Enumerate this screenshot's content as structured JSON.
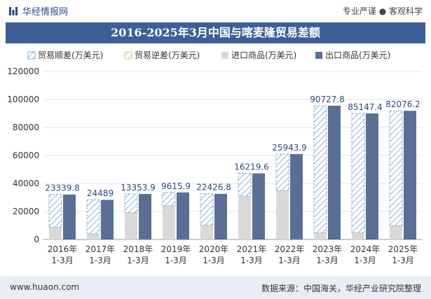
{
  "header": {
    "brand": "华经情报网",
    "tagline": "专业严谨 ● 客观科学",
    "logo_icon": "bar-logo-icon"
  },
  "footer": {
    "website": "www.huaon.com",
    "source": "数据来源：中国海关，华经产业研究院整理"
  },
  "colors": {
    "title_bg": "#3d5f97",
    "export": "#5b6f96",
    "import": "#d9d9d9",
    "surplus_stroke": "#7fa8c9",
    "deficit_stroke": "#d9c98a"
  },
  "chart_data": {
    "type": "bar",
    "title": "2016-2025年3月中国与喀麦隆贸易差额",
    "categories": [
      "2016年\n1-3月",
      "2017年\n1-3月",
      "2018年\n1-3月",
      "2019年\n1-3月",
      "2020年\n1-3月",
      "2021年\n1-3月",
      "2022年\n1-3月",
      "2023年\n1-3月",
      "2024年\n1-3月",
      "2025年\n1-3月"
    ],
    "ylim": [
      0,
      120000
    ],
    "yticks": [
      0,
      20000,
      40000,
      60000,
      80000,
      100000,
      120000
    ],
    "legend": [
      "贸易顺差(万美元)",
      "贸易逆差(万美元)",
      "进口商品(万美元)",
      "出口商品(万美元)"
    ],
    "legend_position": "top",
    "series": [
      {
        "name": "贸易顺差(万美元)",
        "values": [
          23339.8,
          24489,
          13353.9,
          9615.9,
          22426.8,
          16219.6,
          25943.9,
          90727.8,
          85147.4,
          82076.2
        ]
      },
      {
        "name": "贸易逆差(万美元)",
        "values": [
          0,
          0,
          0,
          0,
          0,
          0,
          0,
          0,
          0,
          0
        ]
      },
      {
        "name": "进口商品(万美元)",
        "values": [
          8800,
          3900,
          19200,
          24000,
          10200,
          31000,
          35000,
          4800,
          4800,
          9800
        ]
      },
      {
        "name": "出口商品(万美元)",
        "values": [
          32100,
          28300,
          32500,
          33600,
          32600,
          47200,
          61000,
          95500,
          90000,
          91900
        ]
      }
    ],
    "data_labels": [
      "23339.8",
      "24489",
      "13353.9",
      "9615.9",
      "22426.8",
      "16219.6",
      "25943.9",
      "90727.8",
      "85147.4",
      "82076.2"
    ]
  }
}
